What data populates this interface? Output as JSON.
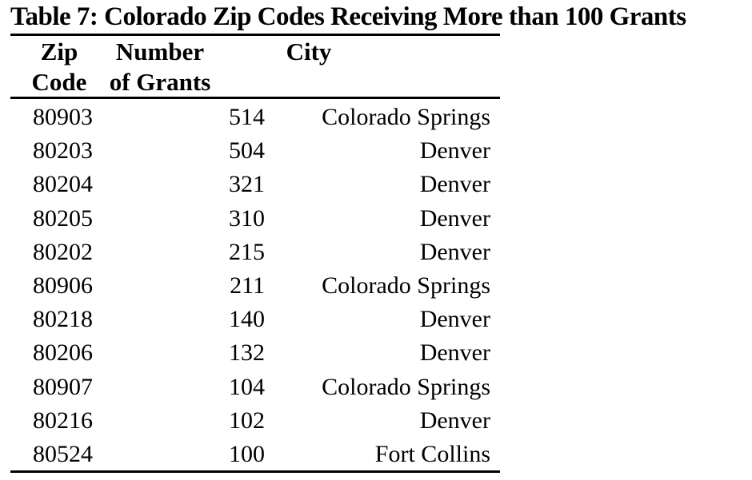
{
  "caption": "Table 7: Colorado Zip Codes Receiving More than 100 Grants",
  "header": {
    "col1_line1": "Zip",
    "col1_line2": "Code",
    "col2_line1": "Number",
    "col2_line2": "of Grants",
    "col3_line1": "City"
  },
  "rows": [
    {
      "zip": "80903",
      "grants": "514",
      "city": "Colorado Springs"
    },
    {
      "zip": "80203",
      "grants": "504",
      "city": "Denver"
    },
    {
      "zip": "80204",
      "grants": "321",
      "city": "Denver"
    },
    {
      "zip": "80205",
      "grants": "310",
      "city": "Denver"
    },
    {
      "zip": "80202",
      "grants": "215",
      "city": "Denver"
    },
    {
      "zip": "80906",
      "grants": "211",
      "city": "Colorado Springs"
    },
    {
      "zip": "80218",
      "grants": "140",
      "city": "Denver"
    },
    {
      "zip": "80206",
      "grants": "132",
      "city": "Denver"
    },
    {
      "zip": "80907",
      "grants": "104",
      "city": "Colorado Springs"
    },
    {
      "zip": "80216",
      "grants": "102",
      "city": "Denver"
    },
    {
      "zip": "80524",
      "grants": "100",
      "city": "Fort Collins"
    }
  ],
  "colors": {
    "text": "#000000",
    "rule": "#000000",
    "background": "#ffffff"
  }
}
